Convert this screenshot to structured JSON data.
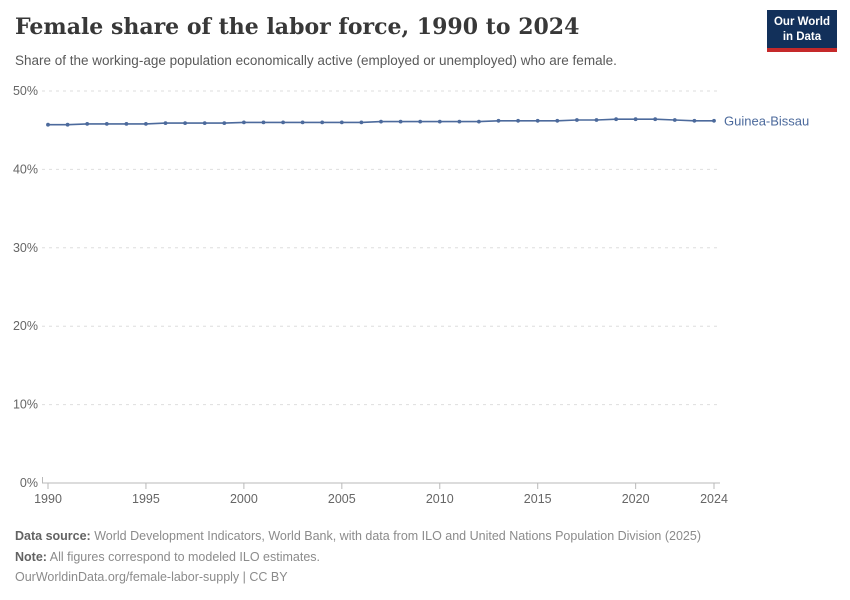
{
  "header": {
    "title": "Female share of the labor force, 1990 to 2024",
    "subtitle": "Share of the working-age population economically active (employed or unemployed) who are female.",
    "logo": {
      "line1": "Our World",
      "line2": "in Data"
    }
  },
  "colors": {
    "series_blue": "#4c6a9c",
    "logo_background": "#12305a",
    "logo_bar_red": "#c5292a",
    "gridline": "#dedede",
    "axis": "#b9b9b9",
    "tick_text": "#666666",
    "title_text": "#383838",
    "subtitle_text": "#595959",
    "footer_text": "#8b8b8b"
  },
  "chart_data": {
    "type": "line",
    "title": "Female share of the labor force, 1990 to 2024",
    "xlabel": "",
    "ylabel": "",
    "x": [
      1990,
      1991,
      1992,
      1993,
      1994,
      1995,
      1996,
      1997,
      1998,
      1999,
      2000,
      2001,
      2002,
      2003,
      2004,
      2005,
      2006,
      2007,
      2008,
      2009,
      2010,
      2011,
      2012,
      2013,
      2014,
      2015,
      2016,
      2017,
      2018,
      2019,
      2020,
      2021,
      2022,
      2023,
      2024
    ],
    "series": [
      {
        "name": "Guinea-Bissau",
        "color": "#4c6a9c",
        "values": [
          45.7,
          45.7,
          45.8,
          45.8,
          45.8,
          45.8,
          45.9,
          45.9,
          45.9,
          45.9,
          46.0,
          46.0,
          46.0,
          46.0,
          46.0,
          46.0,
          46.0,
          46.1,
          46.1,
          46.1,
          46.1,
          46.1,
          46.1,
          46.2,
          46.2,
          46.2,
          46.2,
          46.3,
          46.3,
          46.4,
          46.4,
          46.4,
          46.3,
          46.2,
          46.2
        ]
      }
    ],
    "ylim": [
      0,
      50
    ],
    "yticks": [
      0,
      10,
      20,
      30,
      40,
      50
    ],
    "ytick_suffix": "%",
    "xticks": [
      1990,
      1995,
      2000,
      2005,
      2010,
      2015,
      2020,
      2024
    ],
    "grid": "horizontal-dashed",
    "legend": "end-of-line-label",
    "markers": true
  },
  "footer": {
    "datasource_label": "Data source:",
    "datasource_text": " World Development Indicators, World Bank, with data from ILO and United Nations Population Division (2025)",
    "note_label": "Note:",
    "note_text": " All figures correspond to modeled ILO estimates.",
    "license": "OurWorldinData.org/female-labor-supply | CC BY"
  }
}
